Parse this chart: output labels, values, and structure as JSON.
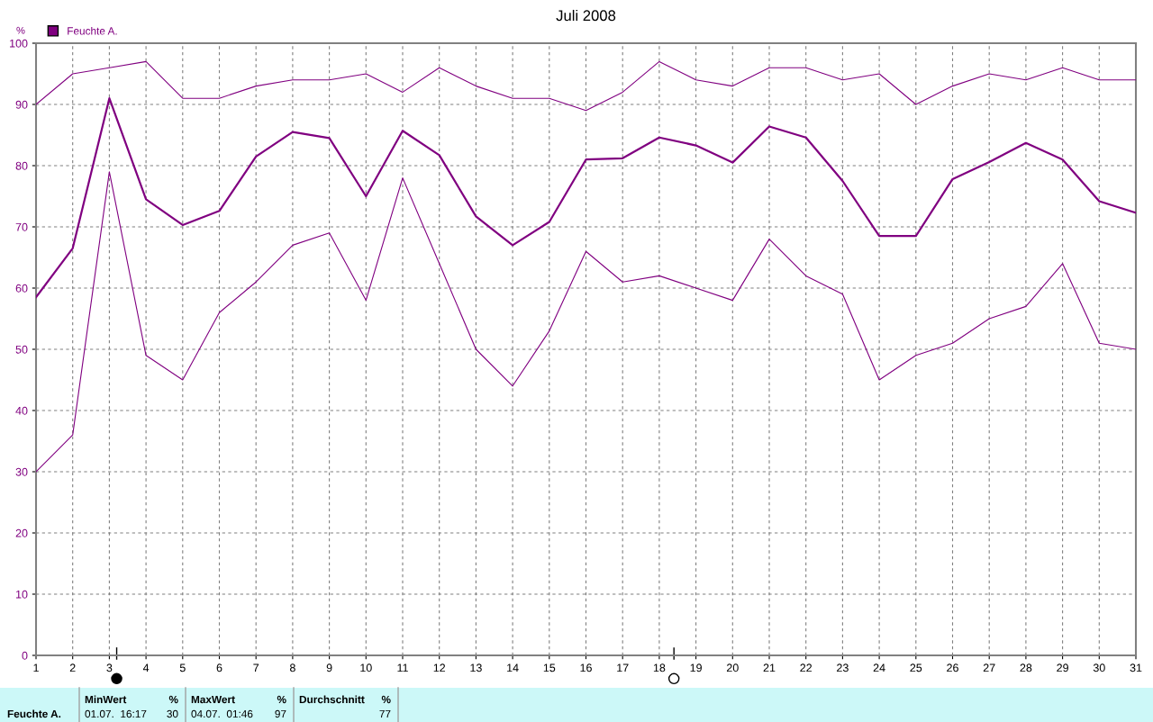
{
  "chart_data": {
    "type": "line",
    "title": "Juli 2008",
    "ylabel": "%",
    "x": [
      1,
      2,
      3,
      4,
      5,
      6,
      7,
      8,
      9,
      10,
      11,
      12,
      13,
      14,
      15,
      16,
      17,
      18,
      19,
      20,
      21,
      22,
      23,
      24,
      25,
      26,
      27,
      28,
      29,
      30,
      31
    ],
    "series": [
      {
        "color": "#800080",
        "values": [
          90,
          95,
          96,
          97,
          91,
          91,
          93,
          94,
          94,
          95,
          92,
          96,
          93,
          91,
          91,
          89,
          92,
          97,
          94,
          93,
          96,
          96,
          94,
          95,
          90,
          93,
          95,
          94,
          96,
          94,
          94
        ]
      },
      {
        "name": "Feuchte A.",
        "color": "#800080",
        "values": [
          58.5,
          66.5,
          91,
          74.5,
          70.3,
          72.6,
          81.5,
          85.5,
          84.5,
          75,
          85.7,
          81.7,
          71.7,
          67,
          70.8,
          81,
          81.2,
          84.6,
          83.3,
          80.5,
          86.4,
          84.6,
          77.5,
          68.5,
          68.5,
          77.8,
          80.6,
          83.7,
          81,
          74.2,
          72.3
        ]
      },
      {
        "color": "#800080",
        "values": [
          30,
          36,
          79,
          49,
          45,
          56,
          61,
          67,
          69,
          58,
          78,
          64,
          50,
          44,
          53,
          66,
          61,
          62,
          60,
          58,
          68,
          62,
          59,
          45,
          49,
          51,
          55,
          57,
          64,
          51,
          50
        ]
      }
    ],
    "xlim": [
      1,
      31
    ],
    "xticks": [
      1,
      2,
      3,
      4,
      5,
      6,
      7,
      8,
      9,
      10,
      11,
      12,
      13,
      14,
      15,
      16,
      17,
      18,
      19,
      20,
      21,
      22,
      23,
      24,
      25,
      26,
      27,
      28,
      29,
      30,
      31
    ],
    "ylim": [
      0,
      100
    ],
    "yticks": [
      0,
      10,
      20,
      30,
      40,
      50,
      60,
      70,
      80,
      90,
      100
    ],
    "grid": true,
    "legend": "top left",
    "marker": "none",
    "line_style": "solid",
    "annotations": [
      "Feuchte A.",
      "MinWert",
      "%",
      "01.07.  16:17",
      "30",
      "MaxWert",
      "%",
      "04.07.  01:46",
      "97",
      "Durchschnitt",
      "%",
      "77"
    ]
  }
}
